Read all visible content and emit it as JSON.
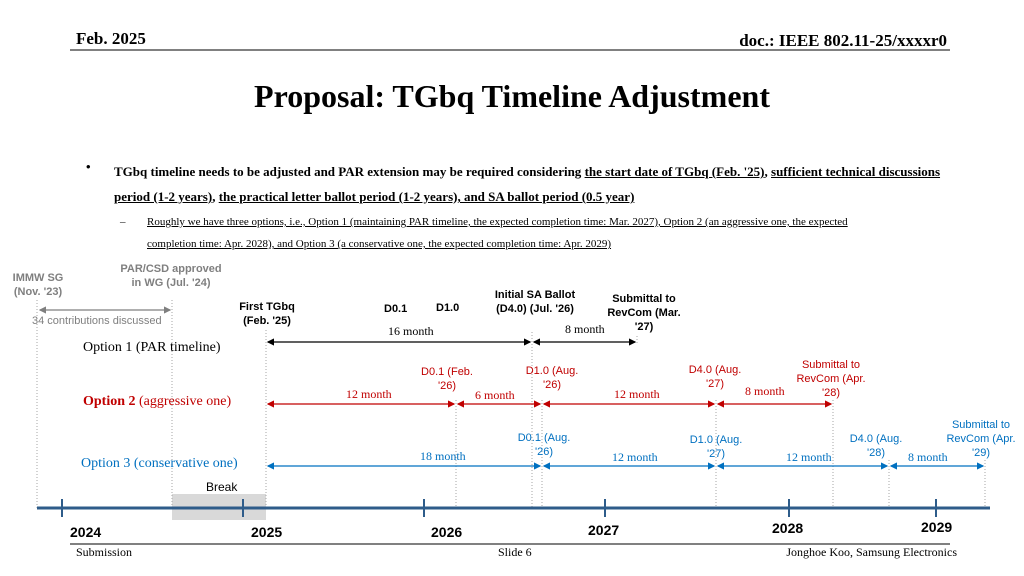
{
  "header": {
    "date": "Feb. 2025",
    "doc": "doc.: IEEE 802.11-25/xxxxr0"
  },
  "title": "Proposal: TGbq Timeline Adjustment",
  "bullet": {
    "marker": "•",
    "parts": [
      "TGbq timeline needs to be adjusted and PAR extension may be required considering ",
      "the start date of TGbq (Feb. '25)",
      ", ",
      "sufficient technical discussions period (1-2 years)",
      ", ",
      "the practical letter ballot period (1-2 years), and SA ballot period (0.5 year)"
    ]
  },
  "sub_bullet": {
    "marker": "–",
    "line1": "Roughly we have three options, i.e., Option 1 (maintaining PAR timeline, the expected completion time: Mar. 2027), Option 2 (an aggressive one, the expected",
    "line2": "completion time: Apr. 2028), and Option 3 (a conservative one, the expected completion time: Apr. 2029)"
  },
  "milestones": {
    "immw_sg": "IMMW SG (Nov. '23)",
    "par_csd": "PAR/CSD approved in WG (Jul. '24)",
    "contributions": "34 contributions discussed",
    "first_tgbq": "First TGbq (Feb. '25)",
    "d01": "D0.1",
    "d10": "D1.0",
    "initial_sa": "Initial SA Ballot (D4.0) (Jul. '26)",
    "submittal_revcom": "Submittal to RevCom (Mar. '27)"
  },
  "option1": {
    "label": "Option 1 (PAR timeline)",
    "durations": [
      "16 month",
      "8 month"
    ]
  },
  "option2": {
    "label_bold": "Option 2",
    "label_rest": " (aggressive one)",
    "milestones": [
      "D0.1 (Feb. '26)",
      "D1.0 (Aug. '26)",
      "D4.0 (Aug. '27)",
      "Submittal to RevCom (Apr. '28)"
    ],
    "durations": [
      "12 month",
      "6 month",
      "12 month",
      "8 month"
    ]
  },
  "option3": {
    "label": "Option 3 (conservative one)",
    "milestones": [
      "D0.1 (Aug. '26)",
      "D1.0 (Aug. '27)",
      "D4.0 (Aug. '28)",
      "Submittal to RevCom (Apr. '29)"
    ],
    "durations": [
      "18 month",
      "12 month",
      "12 month",
      "8 month"
    ]
  },
  "break_label": "Break",
  "years": [
    "2024",
    "2025",
    "2026",
    "2027",
    "2028",
    "2029"
  ],
  "footer": {
    "left": "Submission",
    "center": "Slide 6",
    "right": "Jonghoe Koo, Samsung Electronics"
  },
  "colors": {
    "red": "#c00000",
    "blue": "#0070c0",
    "axis": "#2e5c8a",
    "gray": "#7f7f7f"
  }
}
